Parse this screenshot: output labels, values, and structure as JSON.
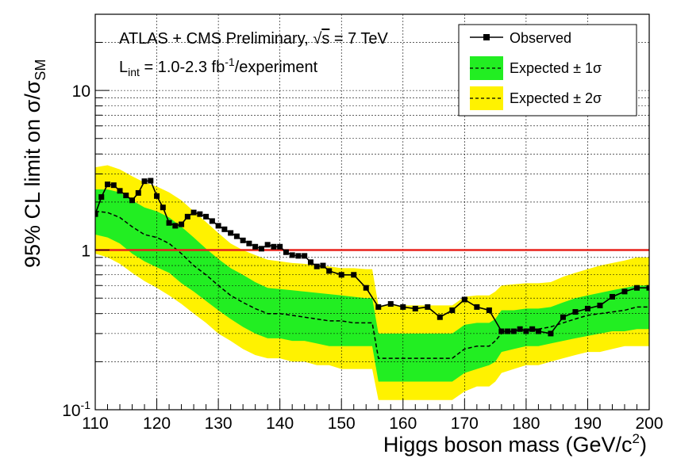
{
  "chart_data": {
    "type": "line",
    "yscale": "log",
    "xlim": [
      110,
      200
    ],
    "ylim": [
      0.1,
      30
    ],
    "grid": true,
    "legend_position": "top-right",
    "xlabel": "Higgs boson mass (GeV/c",
    "xlabel_sup": "2",
    "xlabel_end": ")",
    "ylabel": "95% CL limit on σ/σ",
    "ylabel_sub": "SM",
    "x_ticks": [
      "110",
      "120",
      "130",
      "140",
      "150",
      "160",
      "170",
      "180",
      "190",
      "200"
    ],
    "y_ticks": [
      {
        "base": "10",
        "exp": "-1",
        "value": 0.1
      },
      {
        "base": "1",
        "exp": "",
        "value": 1
      },
      {
        "base": "10",
        "exp": "",
        "value": 10
      }
    ],
    "annotations": {
      "line1": "ATLAS + CMS Preliminary, ",
      "sqrt_s": "s",
      "line1_end": " = 7 TeV",
      "lint": "L",
      "lint_sub": "int",
      "lint_val": " = 1.0-2.3 fb",
      "lint_sup": "-1",
      "lint_end": "/experiment"
    },
    "reference_line": {
      "y": 1,
      "color": "#e8211a"
    },
    "colors": {
      "observed": "#000000",
      "band1": "#22ee22",
      "band2": "#fff200",
      "reference": "#e8211a"
    },
    "series": [
      {
        "name": "Observed",
        "style": "solid-line-squares",
        "x": [
          110,
          111,
          112,
          113,
          114,
          115,
          116,
          117,
          118,
          119,
          120,
          121,
          122,
          123,
          124,
          125,
          126,
          127,
          128,
          129,
          130,
          131,
          132,
          133,
          134,
          135,
          136,
          137,
          138,
          139,
          140,
          141,
          142,
          143,
          144,
          145,
          146,
          147,
          148,
          150,
          152,
          154,
          156,
          158,
          160,
          162,
          164,
          166,
          168,
          170,
          172,
          174,
          176,
          177,
          178,
          179,
          180,
          181,
          182,
          184,
          186,
          188,
          190,
          192,
          194,
          196,
          198,
          200
        ],
        "y": [
          1.68,
          2.15,
          2.58,
          2.55,
          2.35,
          2.2,
          2.05,
          2.28,
          2.7,
          2.72,
          2.18,
          1.85,
          1.48,
          1.42,
          1.45,
          1.62,
          1.72,
          1.68,
          1.62,
          1.52,
          1.42,
          1.35,
          1.28,
          1.22,
          1.15,
          1.1,
          1.05,
          1.02,
          1.08,
          1.05,
          1.05,
          0.97,
          0.93,
          0.92,
          0.92,
          0.84,
          0.79,
          0.8,
          0.74,
          0.7,
          0.7,
          0.58,
          0.44,
          0.46,
          0.44,
          0.43,
          0.44,
          0.38,
          0.42,
          0.49,
          0.44,
          0.42,
          0.31,
          0.31,
          0.31,
          0.32,
          0.31,
          0.32,
          0.31,
          0.3,
          0.38,
          0.41,
          0.43,
          0.45,
          0.51,
          0.55,
          0.58,
          0.58
        ]
      },
      {
        "name": "Expected ± 1σ",
        "style": "dashed-line-green-band",
        "x": [
          110,
          112,
          114,
          116,
          118,
          120,
          122,
          124,
          126,
          128,
          130,
          132,
          134,
          136,
          138,
          140,
          142,
          144,
          146,
          148,
          150,
          152,
          154,
          155,
          156,
          158,
          160,
          162,
          164,
          166,
          168,
          170,
          172,
          174,
          175,
          176,
          178,
          180,
          182,
          184,
          186,
          188,
          190,
          192,
          194,
          196,
          198,
          200
        ],
        "y": [
          1.75,
          1.72,
          1.6,
          1.4,
          1.25,
          1.2,
          1.1,
          0.95,
          0.8,
          0.7,
          0.6,
          0.52,
          0.47,
          0.43,
          0.4,
          0.4,
          0.39,
          0.38,
          0.37,
          0.36,
          0.36,
          0.35,
          0.35,
          0.35,
          0.21,
          0.21,
          0.21,
          0.21,
          0.21,
          0.21,
          0.21,
          0.24,
          0.25,
          0.25,
          0.27,
          0.3,
          0.31,
          0.32,
          0.32,
          0.33,
          0.35,
          0.37,
          0.39,
          0.4,
          0.41,
          0.42,
          0.44,
          0.44
        ],
        "low": [
          1.25,
          1.2,
          1.1,
          0.95,
          0.85,
          0.78,
          0.72,
          0.62,
          0.55,
          0.48,
          0.42,
          0.37,
          0.33,
          0.3,
          0.28,
          0.28,
          0.27,
          0.27,
          0.26,
          0.25,
          0.25,
          0.25,
          0.25,
          0.25,
          0.15,
          0.15,
          0.15,
          0.15,
          0.15,
          0.15,
          0.15,
          0.17,
          0.18,
          0.19,
          0.2,
          0.23,
          0.24,
          0.25,
          0.25,
          0.26,
          0.27,
          0.28,
          0.29,
          0.3,
          0.31,
          0.31,
          0.32,
          0.32
        ],
        "high": [
          2.4,
          2.4,
          2.3,
          2.05,
          1.85,
          1.75,
          1.6,
          1.4,
          1.2,
          1.02,
          0.88,
          0.77,
          0.7,
          0.63,
          0.58,
          0.57,
          0.56,
          0.55,
          0.54,
          0.53,
          0.52,
          0.51,
          0.5,
          0.5,
          0.3,
          0.3,
          0.3,
          0.3,
          0.3,
          0.3,
          0.3,
          0.34,
          0.35,
          0.35,
          0.37,
          0.42,
          0.42,
          0.43,
          0.43,
          0.44,
          0.47,
          0.5,
          0.52,
          0.54,
          0.56,
          0.58,
          0.6,
          0.6
        ]
      },
      {
        "name": "Expected ± 2σ",
        "style": "dashed-line-yellow-band",
        "x": [
          110,
          112,
          114,
          116,
          118,
          120,
          122,
          124,
          126,
          128,
          130,
          132,
          134,
          136,
          138,
          140,
          142,
          144,
          146,
          148,
          150,
          152,
          154,
          155,
          156,
          158,
          160,
          162,
          164,
          166,
          168,
          170,
          172,
          174,
          175,
          176,
          178,
          180,
          182,
          184,
          186,
          188,
          190,
          192,
          194,
          196,
          198,
          200
        ],
        "low": [
          0.95,
          0.9,
          0.82,
          0.72,
          0.64,
          0.58,
          0.52,
          0.46,
          0.4,
          0.35,
          0.3,
          0.27,
          0.24,
          0.22,
          0.21,
          0.21,
          0.2,
          0.2,
          0.19,
          0.19,
          0.18,
          0.18,
          0.18,
          0.18,
          0.115,
          0.115,
          0.115,
          0.115,
          0.115,
          0.115,
          0.115,
          0.13,
          0.14,
          0.14,
          0.15,
          0.17,
          0.18,
          0.19,
          0.19,
          0.2,
          0.21,
          0.22,
          0.23,
          0.23,
          0.24,
          0.25,
          0.25,
          0.25
        ],
        "high": [
          3.3,
          3.4,
          3.2,
          2.9,
          2.65,
          2.5,
          2.3,
          2.05,
          1.75,
          1.5,
          1.28,
          1.1,
          1.0,
          0.93,
          0.87,
          0.85,
          0.83,
          0.82,
          0.8,
          0.79,
          0.77,
          0.77,
          0.76,
          0.76,
          0.45,
          0.45,
          0.45,
          0.45,
          0.45,
          0.45,
          0.45,
          0.51,
          0.52,
          0.52,
          0.55,
          0.6,
          0.61,
          0.62,
          0.62,
          0.63,
          0.68,
          0.72,
          0.76,
          0.8,
          0.83,
          0.86,
          0.9,
          0.9
        ]
      }
    ],
    "legend": [
      {
        "label": "Observed",
        "style": "line-marker"
      },
      {
        "label": "Expected",
        "suffix": " ± 1σ",
        "style": "green-dashed"
      },
      {
        "label": "Expected",
        "suffix": " ± 2σ",
        "style": "yellow-dashed"
      }
    ]
  }
}
